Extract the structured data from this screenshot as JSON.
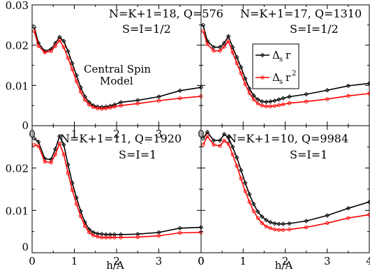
{
  "chart_data": [
    {
      "type": "line",
      "x_tick_labels": [
        "0",
        "1",
        "2",
        "3",
        "0"
      ],
      "xlim": [
        0,
        4
      ],
      "ylim": [
        0,
        0.03
      ],
      "y_tick_labels": [
        "0",
        "0.01",
        "0.02",
        "0.03"
      ],
      "annotations": [
        "N=K+1=18, Q=576",
        "S=I=1/2",
        "Central Spin",
        "Model"
      ],
      "series": [
        {
          "color": "#000000",
          "marker": "diamond",
          "x": [
            0.05,
            0.15,
            0.3,
            0.45,
            0.55,
            0.65,
            0.75,
            0.85,
            0.95,
            1.05,
            1.15,
            1.25,
            1.35,
            1.45,
            1.55,
            1.65,
            1.75,
            1.85,
            1.95,
            2.1,
            2.5,
            3.0,
            3.5,
            4.0
          ],
          "y": [
            0.0245,
            0.0205,
            0.0185,
            0.019,
            0.0205,
            0.022,
            0.021,
            0.0185,
            0.0155,
            0.0125,
            0.0095,
            0.0072,
            0.0058,
            0.005,
            0.0047,
            0.0046,
            0.0047,
            0.0049,
            0.0052,
            0.0058,
            0.0063,
            0.0072,
            0.0087,
            0.0095
          ]
        },
        {
          "color": "#ff0000",
          "marker": "circle",
          "x": [
            0.05,
            0.15,
            0.3,
            0.45,
            0.55,
            0.65,
            0.75,
            0.85,
            0.95,
            1.05,
            1.15,
            1.25,
            1.35,
            1.45,
            1.55,
            1.65,
            1.75,
            1.85,
            1.95,
            2.1,
            2.5,
            3.0,
            3.5,
            4.0
          ],
          "y": [
            0.0235,
            0.0198,
            0.0182,
            0.0185,
            0.0198,
            0.0212,
            0.0195,
            0.0168,
            0.014,
            0.011,
            0.0084,
            0.0064,
            0.0052,
            0.0046,
            0.0043,
            0.0042,
            0.0043,
            0.0045,
            0.0047,
            0.005,
            0.0055,
            0.0062,
            0.0068,
            0.0073
          ]
        }
      ]
    },
    {
      "type": "line",
      "x_tick_labels": [],
      "xlim": [
        0,
        4
      ],
      "ylim": [
        0,
        0.03
      ],
      "y_tick_labels": [],
      "annotations": [
        "N=K+1=17, Q=1310",
        "S=I=1/2"
      ],
      "legend": {
        "placement": "middle",
        "labels": [
          "Δ",
          "s",
          "r",
          "Δ",
          "s",
          "r",
          "2"
        ]
      },
      "series": [
        {
          "name": "Δsr",
          "color": "#000000",
          "marker": "diamond",
          "x": [
            0.05,
            0.15,
            0.3,
            0.45,
            0.55,
            0.65,
            0.75,
            0.85,
            0.95,
            1.05,
            1.15,
            1.25,
            1.35,
            1.45,
            1.55,
            1.65,
            1.75,
            1.85,
            1.95,
            2.1,
            2.5,
            3.0,
            3.5,
            4.0
          ],
          "y": [
            0.025,
            0.021,
            0.0195,
            0.0195,
            0.0205,
            0.0222,
            0.0195,
            0.017,
            0.0145,
            0.0117,
            0.0092,
            0.0075,
            0.0065,
            0.006,
            0.0059,
            0.006,
            0.0062,
            0.0065,
            0.0068,
            0.0072,
            0.0078,
            0.0088,
            0.0099,
            0.0105
          ]
        },
        {
          "name": "Δsr²",
          "color": "#ff0000",
          "marker": "circle",
          "x": [
            0.05,
            0.15,
            0.3,
            0.45,
            0.55,
            0.65,
            0.75,
            0.85,
            0.95,
            1.05,
            1.15,
            1.25,
            1.35,
            1.45,
            1.55,
            1.65,
            1.75,
            1.85,
            1.95,
            2.1,
            2.5,
            3.0,
            3.5,
            4.0
          ],
          "y": [
            0.0235,
            0.0202,
            0.0186,
            0.0186,
            0.0196,
            0.021,
            0.0182,
            0.0155,
            0.013,
            0.0103,
            0.0081,
            0.0065,
            0.0055,
            0.005,
            0.0048,
            0.0048,
            0.0049,
            0.0051,
            0.0053,
            0.0056,
            0.006,
            0.0066,
            0.0074,
            0.008
          ]
        }
      ]
    },
    {
      "type": "line",
      "x_tick_labels": [
        "0",
        "1",
        "2",
        "3",
        "0"
      ],
      "xlabel": "h/A",
      "xlim": [
        0,
        4
      ],
      "ylim": [
        0,
        0.03
      ],
      "y_tick_labels": [
        "0",
        "0.01",
        "0.02"
      ],
      "annotations": [
        "N=K+1=11, Q=1920",
        "S=I=1"
      ],
      "series": [
        {
          "color": "#000000",
          "marker": "diamond",
          "x": [
            0.05,
            0.15,
            0.3,
            0.45,
            0.55,
            0.65,
            0.75,
            0.85,
            0.95,
            1.05,
            1.15,
            1.25,
            1.35,
            1.45,
            1.55,
            1.65,
            1.75,
            1.85,
            1.95,
            2.1,
            2.5,
            3.0,
            3.5,
            4.0
          ],
          "y": [
            0.027,
            0.0262,
            0.0222,
            0.022,
            0.0245,
            0.0275,
            0.0255,
            0.0208,
            0.0165,
            0.013,
            0.0098,
            0.0072,
            0.0055,
            0.0048,
            0.0045,
            0.0044,
            0.0043,
            0.0043,
            0.0043,
            0.0043,
            0.0044,
            0.0048,
            0.0058,
            0.006
          ]
        },
        {
          "color": "#ff0000",
          "marker": "circle",
          "x": [
            0.05,
            0.15,
            0.3,
            0.45,
            0.55,
            0.65,
            0.75,
            0.85,
            0.95,
            1.05,
            1.15,
            1.25,
            1.35,
            1.45,
            1.55,
            1.65,
            1.75,
            1.85,
            1.95,
            2.1,
            2.5,
            3.0,
            3.5,
            4.0
          ],
          "y": [
            0.0255,
            0.0252,
            0.0215,
            0.0213,
            0.0232,
            0.0258,
            0.0232,
            0.0188,
            0.0148,
            0.0115,
            0.0086,
            0.0063,
            0.0048,
            0.0041,
            0.0038,
            0.0036,
            0.0036,
            0.0036,
            0.0036,
            0.0036,
            0.0037,
            0.004,
            0.0047,
            0.0048
          ]
        }
      ]
    },
    {
      "type": "line",
      "x_tick_labels": [
        "0",
        "1",
        "2",
        "3",
        "4"
      ],
      "xlabel": "h/A",
      "xlim": [
        0,
        4
      ],
      "ylim": [
        0,
        0.03
      ],
      "y_tick_labels": [],
      "annotations": [
        "N=K+1=10, Q=9984",
        "S=I=1"
      ],
      "series": [
        {
          "color": "#000000",
          "marker": "diamond",
          "x": [
            0.05,
            0.15,
            0.3,
            0.45,
            0.55,
            0.65,
            0.75,
            0.85,
            0.95,
            1.05,
            1.15,
            1.25,
            1.35,
            1.45,
            1.55,
            1.65,
            1.75,
            1.85,
            1.95,
            2.1,
            2.5,
            3.0,
            3.5,
            4.0
          ],
          "y": [
            0.027,
            0.0285,
            0.0265,
            0.0265,
            0.028,
            0.0272,
            0.025,
            0.0225,
            0.0195,
            0.0165,
            0.0138,
            0.0115,
            0.0097,
            0.0085,
            0.0077,
            0.0072,
            0.0069,
            0.0068,
            0.0068,
            0.0069,
            0.0075,
            0.0088,
            0.0105,
            0.012
          ]
        },
        {
          "color": "#ff0000",
          "marker": "circle",
          "x": [
            0.05,
            0.15,
            0.3,
            0.45,
            0.55,
            0.65,
            0.75,
            0.85,
            0.95,
            1.05,
            1.15,
            1.25,
            1.35,
            1.45,
            1.55,
            1.65,
            1.75,
            1.85,
            1.95,
            2.1,
            2.5,
            3.0,
            3.5,
            4.0
          ],
          "y": [
            0.0255,
            0.0275,
            0.0255,
            0.0252,
            0.0265,
            0.0257,
            0.0232,
            0.0205,
            0.0175,
            0.0145,
            0.012,
            0.0098,
            0.0082,
            0.007,
            0.0062,
            0.0058,
            0.0055,
            0.0054,
            0.0054,
            0.0055,
            0.006,
            0.007,
            0.0082,
            0.009
          ]
        }
      ]
    }
  ]
}
